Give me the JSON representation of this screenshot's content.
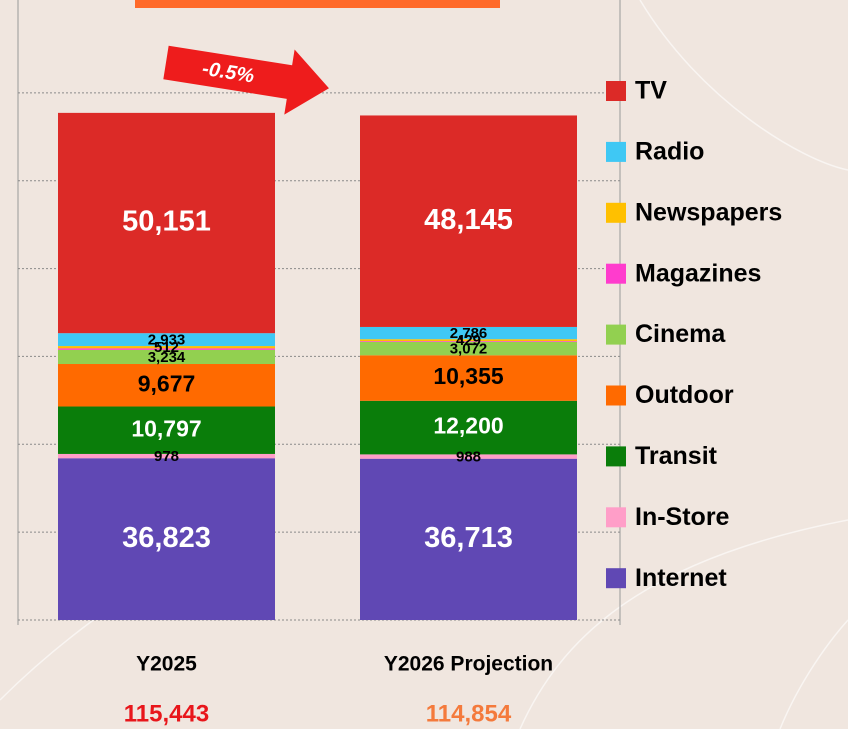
{
  "chart_data": {
    "type": "stacked_bar",
    "categories": [
      "Y2025",
      "Y2026 Projection"
    ],
    "series": [
      {
        "name": "Internet",
        "color": "#6048b4",
        "label_color": "#ffffff",
        "values": [
          36823,
          36713
        ],
        "value_labels": [
          "36,823",
          "36,713"
        ]
      },
      {
        "name": "In-Store",
        "color": "#ff9ec8",
        "label_color": "#000000",
        "values": [
          978,
          988
        ],
        "value_labels": [
          "978",
          "988"
        ]
      },
      {
        "name": "Transit",
        "color": "#0a7d0a",
        "label_color": "#ffffff",
        "values": [
          10797,
          12200
        ],
        "value_labels": [
          "10,797",
          "12,200"
        ]
      },
      {
        "name": "Outdoor",
        "color": "#ff6a00",
        "label_color": "#000000",
        "values": [
          9677,
          10355
        ],
        "value_labels": [
          "9,677",
          "10,355"
        ]
      },
      {
        "name": "Cinema",
        "color": "#92d050",
        "label_color": "#000000",
        "values": [
          3234,
          3072
        ],
        "value_labels": [
          "3,234",
          "3,072"
        ]
      },
      {
        "name": "Magazines",
        "color": "#ff3ccd",
        "label_color": "#000000",
        "values": [
          338,
          166
        ],
        "value_labels": [
          null,
          null
        ]
      },
      {
        "name": "Newspapers",
        "color": "#ffc000",
        "label_color": "#000000",
        "values": [
          512,
          429
        ],
        "value_labels": [
          "512",
          "429"
        ]
      },
      {
        "name": "Radio",
        "color": "#3fc8f4",
        "label_color": "#000000",
        "values": [
          2933,
          2786
        ],
        "value_labels": [
          "2,933",
          "2,786"
        ]
      },
      {
        "name": "TV",
        "color": "#dc2a27",
        "label_color": "#ffffff",
        "values": [
          50151,
          48145
        ],
        "value_labels": [
          "50,151",
          "48,145"
        ]
      }
    ],
    "totals": {
      "values": [
        115443,
        114854
      ],
      "value_labels": [
        "115,443",
        "114,854"
      ],
      "colors": [
        "#e8161b",
        "#f47a3c"
      ]
    },
    "annotation": "-0.5%",
    "ylim": [
      0,
      140000
    ],
    "yticks": [
      0,
      20000,
      40000,
      60000,
      80000,
      100000,
      120000
    ],
    "grid": true
  }
}
